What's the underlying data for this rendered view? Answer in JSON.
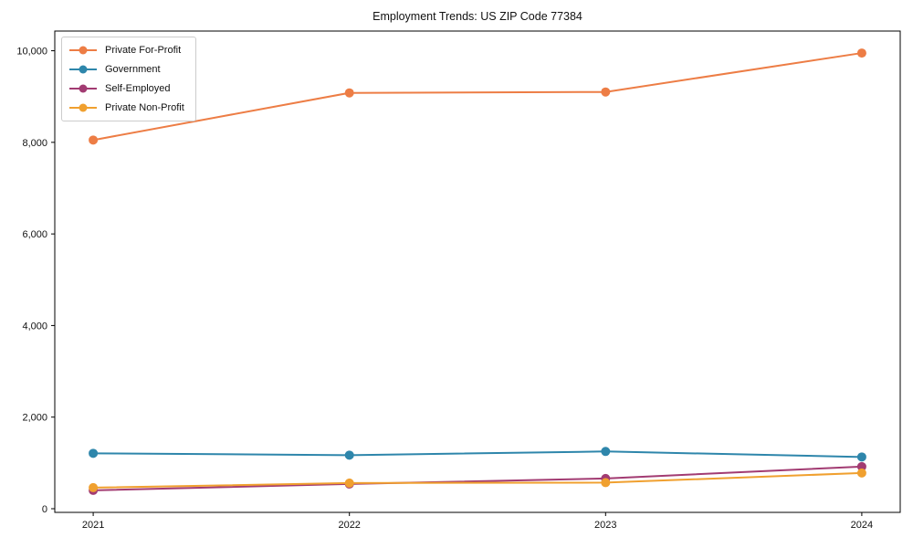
{
  "chart_data": {
    "type": "line",
    "title": "Employment Trends: US ZIP Code 77384",
    "xlabel": "",
    "ylabel": "",
    "categories": [
      "2021",
      "2022",
      "2023",
      "2024"
    ],
    "series": [
      {
        "name": "Private For-Profit",
        "color": "#ED7D45",
        "values": [
          8050,
          9080,
          9100,
          9950
        ]
      },
      {
        "name": "Government",
        "color": "#2E86AB",
        "values": [
          1210,
          1170,
          1250,
          1130
        ]
      },
      {
        "name": "Self-Employed",
        "color": "#A23B72",
        "values": [
          400,
          540,
          660,
          920
        ]
      },
      {
        "name": "Private Non-Profit",
        "color": "#F0A02F",
        "values": [
          460,
          560,
          570,
          780
        ]
      }
    ],
    "yticks": {
      "values": [
        0,
        2000,
        4000,
        6000,
        8000,
        10000
      ],
      "labels": [
        "0",
        "2,000",
        "4,000",
        "6,000",
        "8,000",
        "10,000"
      ]
    },
    "ylim": [
      -80,
      10430
    ],
    "xlim": [
      -0.15,
      3.15
    ],
    "grid": false,
    "legend_position": "upper-left",
    "axis_color": "#000000",
    "background_color": "#ffffff"
  }
}
